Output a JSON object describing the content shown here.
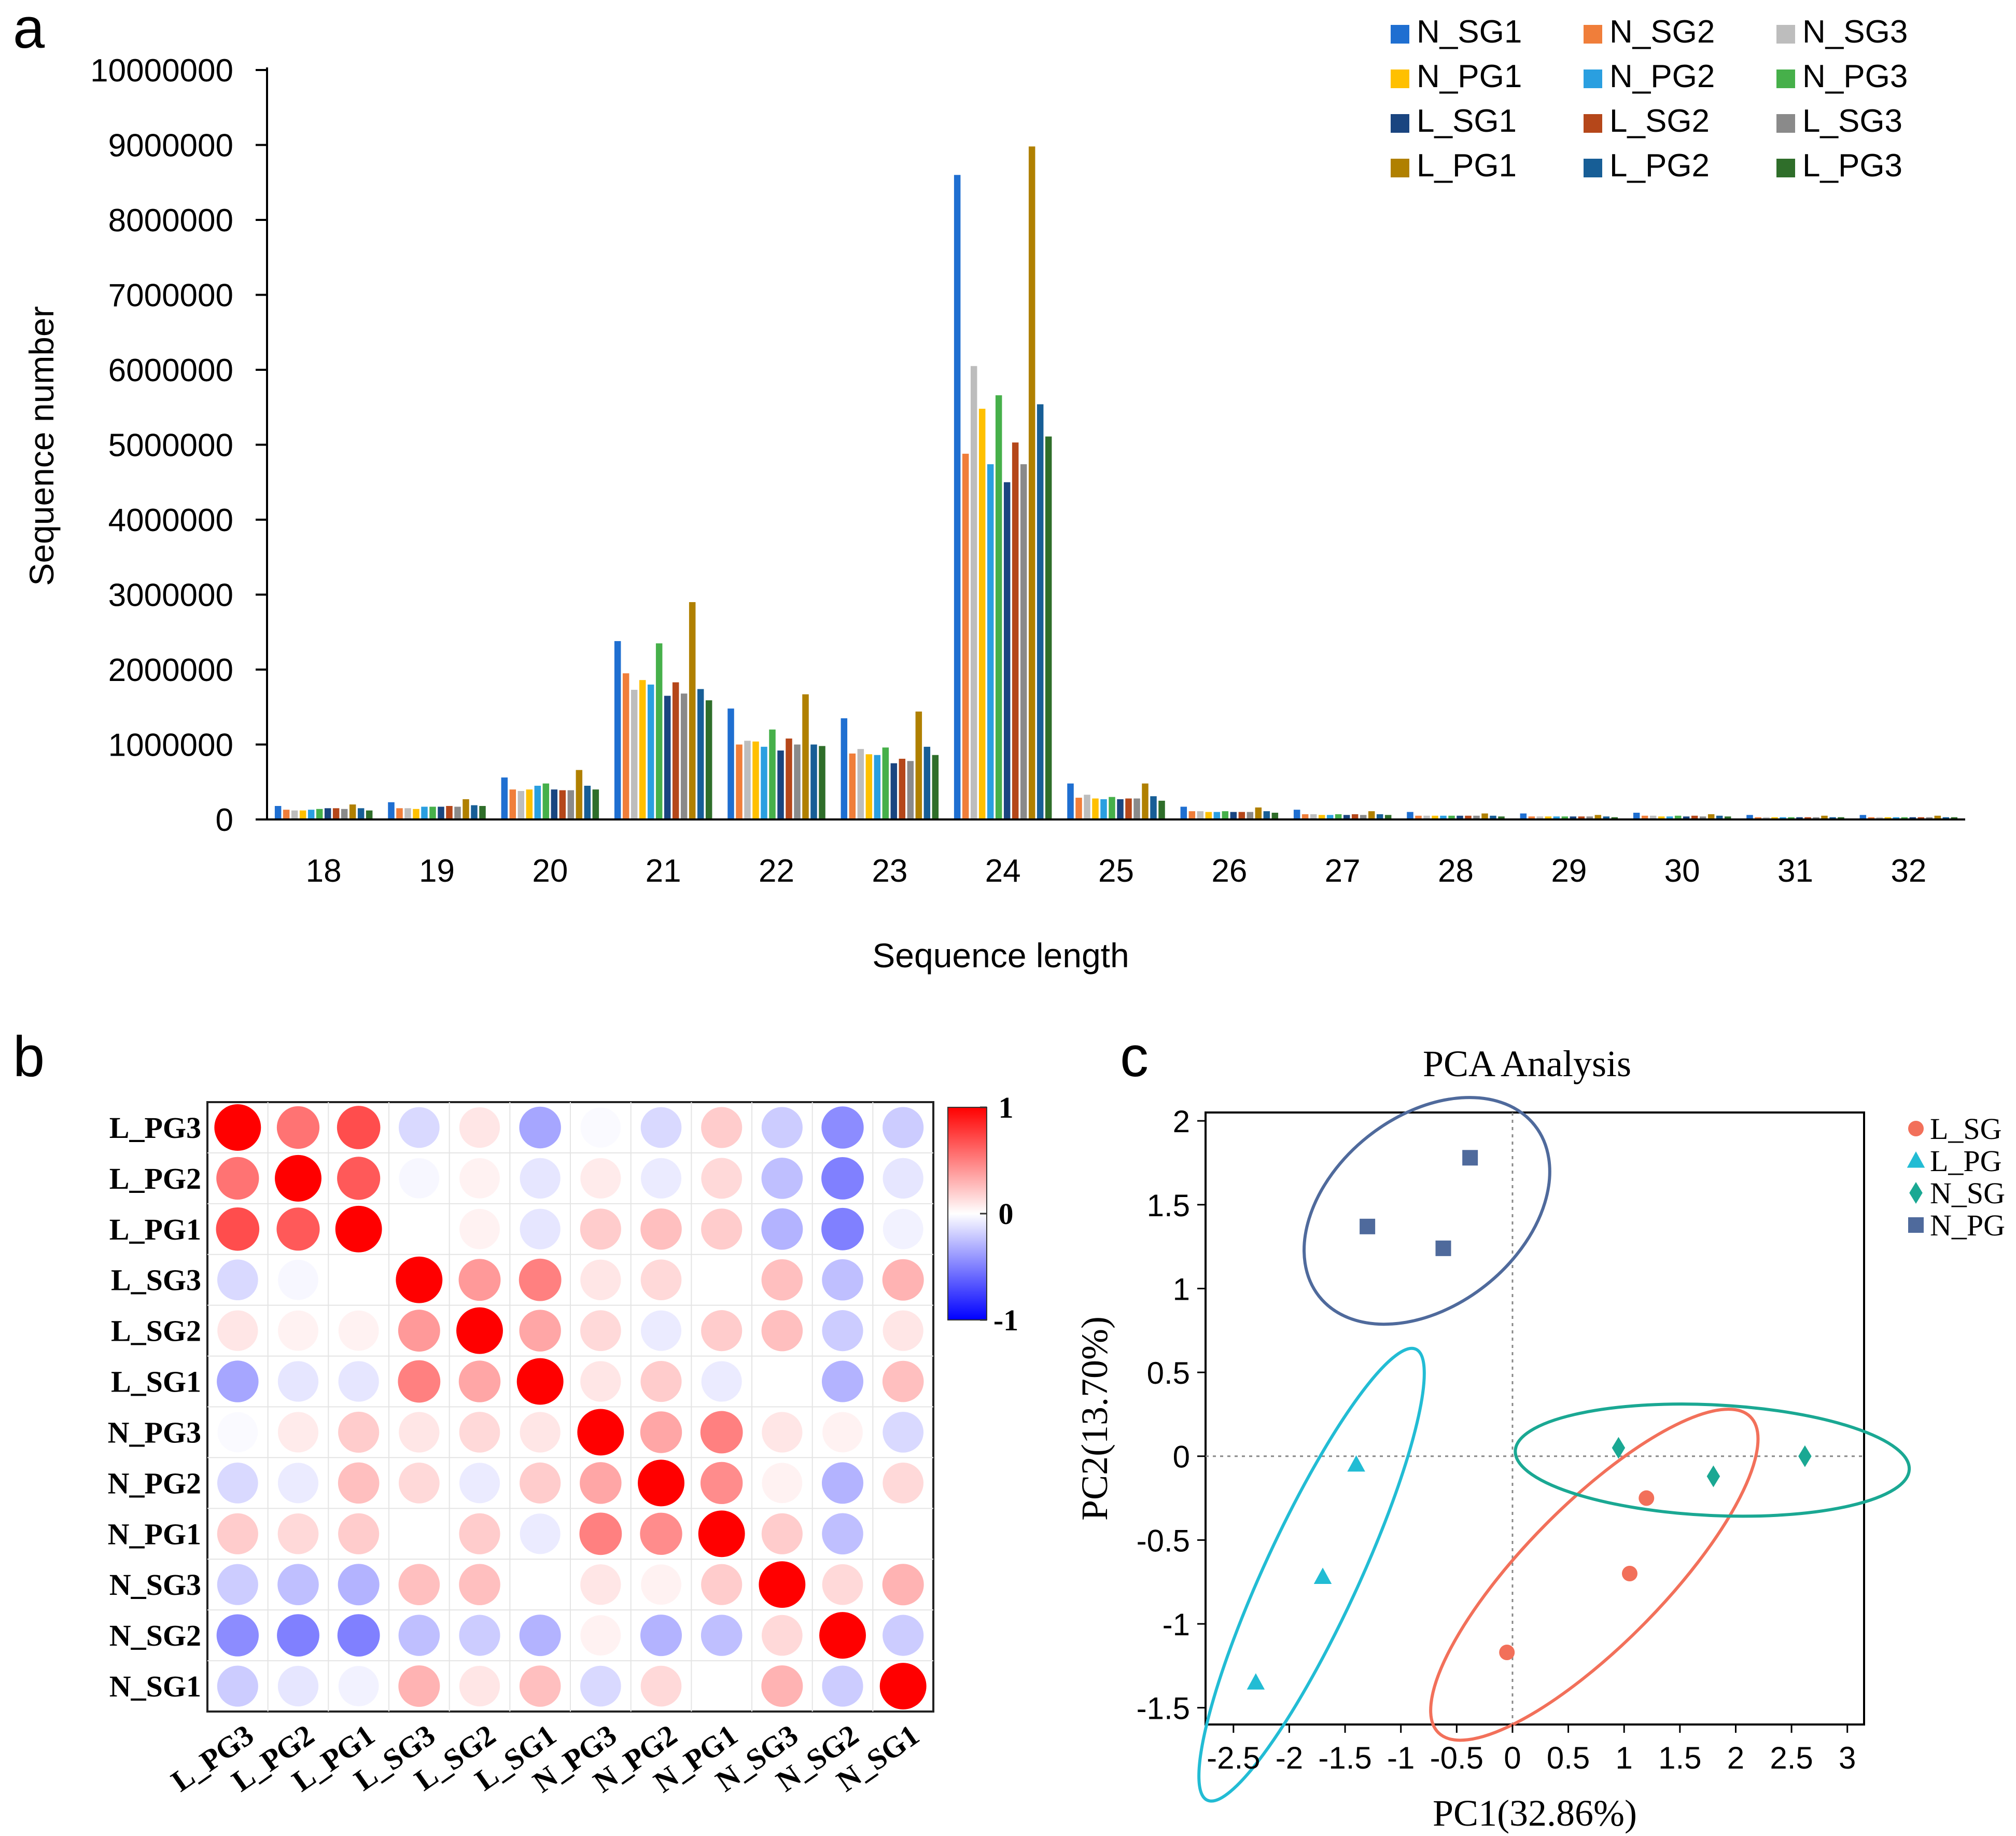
{
  "panel_labels": {
    "a": "a",
    "b": "b",
    "c": "c"
  },
  "colors": {
    "N_SG1": "#1f6fd1",
    "N_SG2": "#f07e3a",
    "N_SG3": "#bdbdbd",
    "N_PG1": "#ffc000",
    "N_PG2": "#2a9fe0",
    "N_PG3": "#46b04a",
    "L_SG1": "#1a4580",
    "L_SG2": "#b5471a",
    "L_SG3": "#8a8a8a",
    "L_PG1": "#b08000",
    "L_PG2": "#175e96",
    "L_PG3": "#2f6e2a",
    "L_SG_pca": "#f2705a",
    "L_PG_pca": "#22bcd4",
    "N_SG_pca": "#1aa893",
    "N_PG_pca": "#4f6a9c"
  },
  "chart_data": [
    {
      "type": "bar",
      "xlabel": "Sequence length",
      "ylabel": "Sequence number",
      "ylim": [
        0,
        10000000
      ],
      "yticks": [
        "0",
        "1000000",
        "2000000",
        "3000000",
        "4000000",
        "5000000",
        "6000000",
        "7000000",
        "8000000",
        "9000000",
        "10000000"
      ],
      "legend_placement": "top-right",
      "categories": [
        "18",
        "19",
        "20",
        "21",
        "22",
        "23",
        "24",
        "25",
        "26",
        "27",
        "28",
        "29",
        "30",
        "31",
        "32"
      ],
      "series": [
        {
          "name": "N_SG1",
          "values": [
            180000,
            230000,
            560000,
            2380000,
            1480000,
            1350000,
            8600000,
            480000,
            170000,
            130000,
            100000,
            80000,
            90000,
            60000,
            60000
          ]
        },
        {
          "name": "N_SG2",
          "values": [
            130000,
            150000,
            400000,
            1950000,
            1000000,
            880000,
            4880000,
            290000,
            110000,
            70000,
            50000,
            40000,
            50000,
            30000,
            30000
          ]
        },
        {
          "name": "N_SG3",
          "values": [
            120000,
            150000,
            380000,
            1730000,
            1050000,
            940000,
            6050000,
            330000,
            110000,
            70000,
            50000,
            40000,
            50000,
            30000,
            30000
          ]
        },
        {
          "name": "N_PG1",
          "values": [
            120000,
            140000,
            400000,
            1860000,
            1040000,
            870000,
            5480000,
            280000,
            100000,
            60000,
            50000,
            40000,
            40000,
            30000,
            30000
          ]
        },
        {
          "name": "N_PG2",
          "values": [
            130000,
            170000,
            450000,
            1800000,
            970000,
            860000,
            4740000,
            270000,
            100000,
            60000,
            50000,
            40000,
            40000,
            30000,
            30000
          ]
        },
        {
          "name": "N_PG3",
          "values": [
            140000,
            170000,
            480000,
            2350000,
            1200000,
            960000,
            5660000,
            300000,
            110000,
            70000,
            50000,
            40000,
            50000,
            30000,
            30000
          ]
        },
        {
          "name": "L_SG1",
          "values": [
            150000,
            170000,
            400000,
            1650000,
            920000,
            750000,
            4500000,
            270000,
            100000,
            60000,
            50000,
            40000,
            40000,
            30000,
            30000
          ]
        },
        {
          "name": "L_SG2",
          "values": [
            150000,
            180000,
            390000,
            1830000,
            1080000,
            810000,
            5030000,
            280000,
            100000,
            70000,
            50000,
            40000,
            50000,
            30000,
            30000
          ]
        },
        {
          "name": "L_SG3",
          "values": [
            140000,
            170000,
            390000,
            1680000,
            1000000,
            780000,
            4740000,
            280000,
            100000,
            60000,
            50000,
            40000,
            40000,
            30000,
            30000
          ]
        },
        {
          "name": "L_PG1",
          "values": [
            200000,
            270000,
            660000,
            2900000,
            1670000,
            1440000,
            8980000,
            480000,
            160000,
            110000,
            80000,
            60000,
            70000,
            50000,
            50000
          ]
        },
        {
          "name": "L_PG2",
          "values": [
            150000,
            190000,
            450000,
            1740000,
            1000000,
            970000,
            5540000,
            310000,
            110000,
            70000,
            50000,
            40000,
            50000,
            30000,
            30000
          ]
        },
        {
          "name": "L_PG3",
          "values": [
            120000,
            180000,
            400000,
            1590000,
            980000,
            860000,
            5110000,
            250000,
            90000,
            60000,
            40000,
            30000,
            40000,
            30000,
            30000
          ]
        }
      ]
    },
    {
      "type": "heatmap",
      "row_labels": [
        "L_PG3",
        "L_PG2",
        "L_PG1",
        "L_SG3",
        "L_SG2",
        "L_SG1",
        "N_PG3",
        "N_PG2",
        "N_PG1",
        "N_SG3",
        "N_SG2",
        "N_SG1"
      ],
      "col_labels": [
        "L_PG3",
        "L_PG2",
        "L_PG1",
        "L_SG3",
        "L_SG2",
        "L_SG1",
        "N_PG3",
        "N_PG2",
        "N_PG1",
        "N_SG3",
        "N_SG2",
        "N_SG1"
      ],
      "colorbar_range": [
        -1,
        1
      ],
      "colorbar_ticks": [
        "1",
        "0",
        "-1"
      ],
      "values": [
        [
          1.0,
          0.55,
          0.7,
          -0.15,
          0.1,
          -0.35,
          -0.02,
          -0.15,
          0.2,
          -0.2,
          -0.45,
          -0.2
        ],
        [
          0.55,
          1.0,
          0.65,
          -0.03,
          0.05,
          -0.1,
          0.08,
          -0.08,
          0.15,
          -0.25,
          -0.5,
          -0.1
        ],
        [
          0.7,
          0.65,
          1.0,
          0.0,
          0.05,
          -0.1,
          0.2,
          0.25,
          0.2,
          -0.3,
          -0.5,
          -0.05
        ],
        [
          -0.15,
          -0.03,
          0.0,
          1.0,
          0.4,
          0.5,
          0.1,
          0.15,
          0.0,
          0.25,
          -0.25,
          0.3
        ],
        [
          0.1,
          0.05,
          0.05,
          0.4,
          1.0,
          0.35,
          0.15,
          -0.08,
          0.2,
          0.25,
          -0.2,
          0.1
        ],
        [
          -0.35,
          -0.1,
          -0.1,
          0.5,
          0.35,
          1.0,
          0.1,
          0.2,
          -0.08,
          0.0,
          -0.3,
          0.25
        ],
        [
          -0.02,
          0.08,
          0.2,
          0.1,
          0.15,
          0.1,
          1.0,
          0.35,
          0.5,
          0.1,
          0.05,
          -0.15
        ],
        [
          -0.15,
          -0.08,
          0.25,
          0.15,
          -0.08,
          0.2,
          0.35,
          1.0,
          0.45,
          0.05,
          -0.3,
          0.15
        ],
        [
          0.2,
          0.15,
          0.2,
          0.0,
          0.2,
          -0.08,
          0.5,
          0.45,
          1.0,
          0.2,
          -0.25,
          0.0
        ],
        [
          -0.2,
          -0.25,
          -0.3,
          0.25,
          0.25,
          0.0,
          0.1,
          0.05,
          0.2,
          1.0,
          0.15,
          0.3
        ],
        [
          -0.45,
          -0.5,
          -0.5,
          -0.25,
          -0.2,
          -0.3,
          0.05,
          -0.3,
          -0.25,
          0.15,
          1.0,
          -0.2
        ],
        [
          -0.2,
          -0.1,
          -0.05,
          0.3,
          0.1,
          0.25,
          -0.15,
          0.15,
          0.0,
          0.3,
          -0.2,
          1.0
        ]
      ]
    },
    {
      "type": "scatter",
      "title": "PCA Analysis",
      "xlabel": "PC1(32.86%)",
      "ylabel": "PC2(13.70%)",
      "xlim": [
        -2.5,
        3
      ],
      "ylim": [
        -1.5,
        2
      ],
      "xticks": [
        "-2.5",
        "-2",
        "-1.5",
        "-1",
        "-0.5",
        "0",
        "0.5",
        "1",
        "1.5",
        "2",
        "2.5",
        "3"
      ],
      "yticks": [
        "2",
        "1.5",
        "1",
        "0.5",
        "0",
        "-0.5",
        "-1",
        "-1.5"
      ],
      "legend_placement": "right",
      "series": [
        {
          "name": "L_SG",
          "marker": "circle",
          "points": [
            [
              1.2,
              -0.25
            ],
            [
              1.05,
              -0.7
            ],
            [
              -0.05,
              -1.17
            ]
          ]
        },
        {
          "name": "L_PG",
          "marker": "triangle",
          "points": [
            [
              -1.4,
              -0.05
            ],
            [
              -1.7,
              -0.72
            ],
            [
              -2.3,
              -1.35
            ]
          ]
        },
        {
          "name": "N_SG",
          "marker": "diamond",
          "points": [
            [
              0.95,
              0.05
            ],
            [
              1.8,
              -0.12
            ],
            [
              2.62,
              0.0
            ]
          ]
        },
        {
          "name": "N_PG",
          "marker": "square",
          "points": [
            [
              -1.3,
              1.37
            ],
            [
              -0.62,
              1.24
            ],
            [
              -0.38,
              1.78
            ]
          ]
        }
      ]
    }
  ]
}
